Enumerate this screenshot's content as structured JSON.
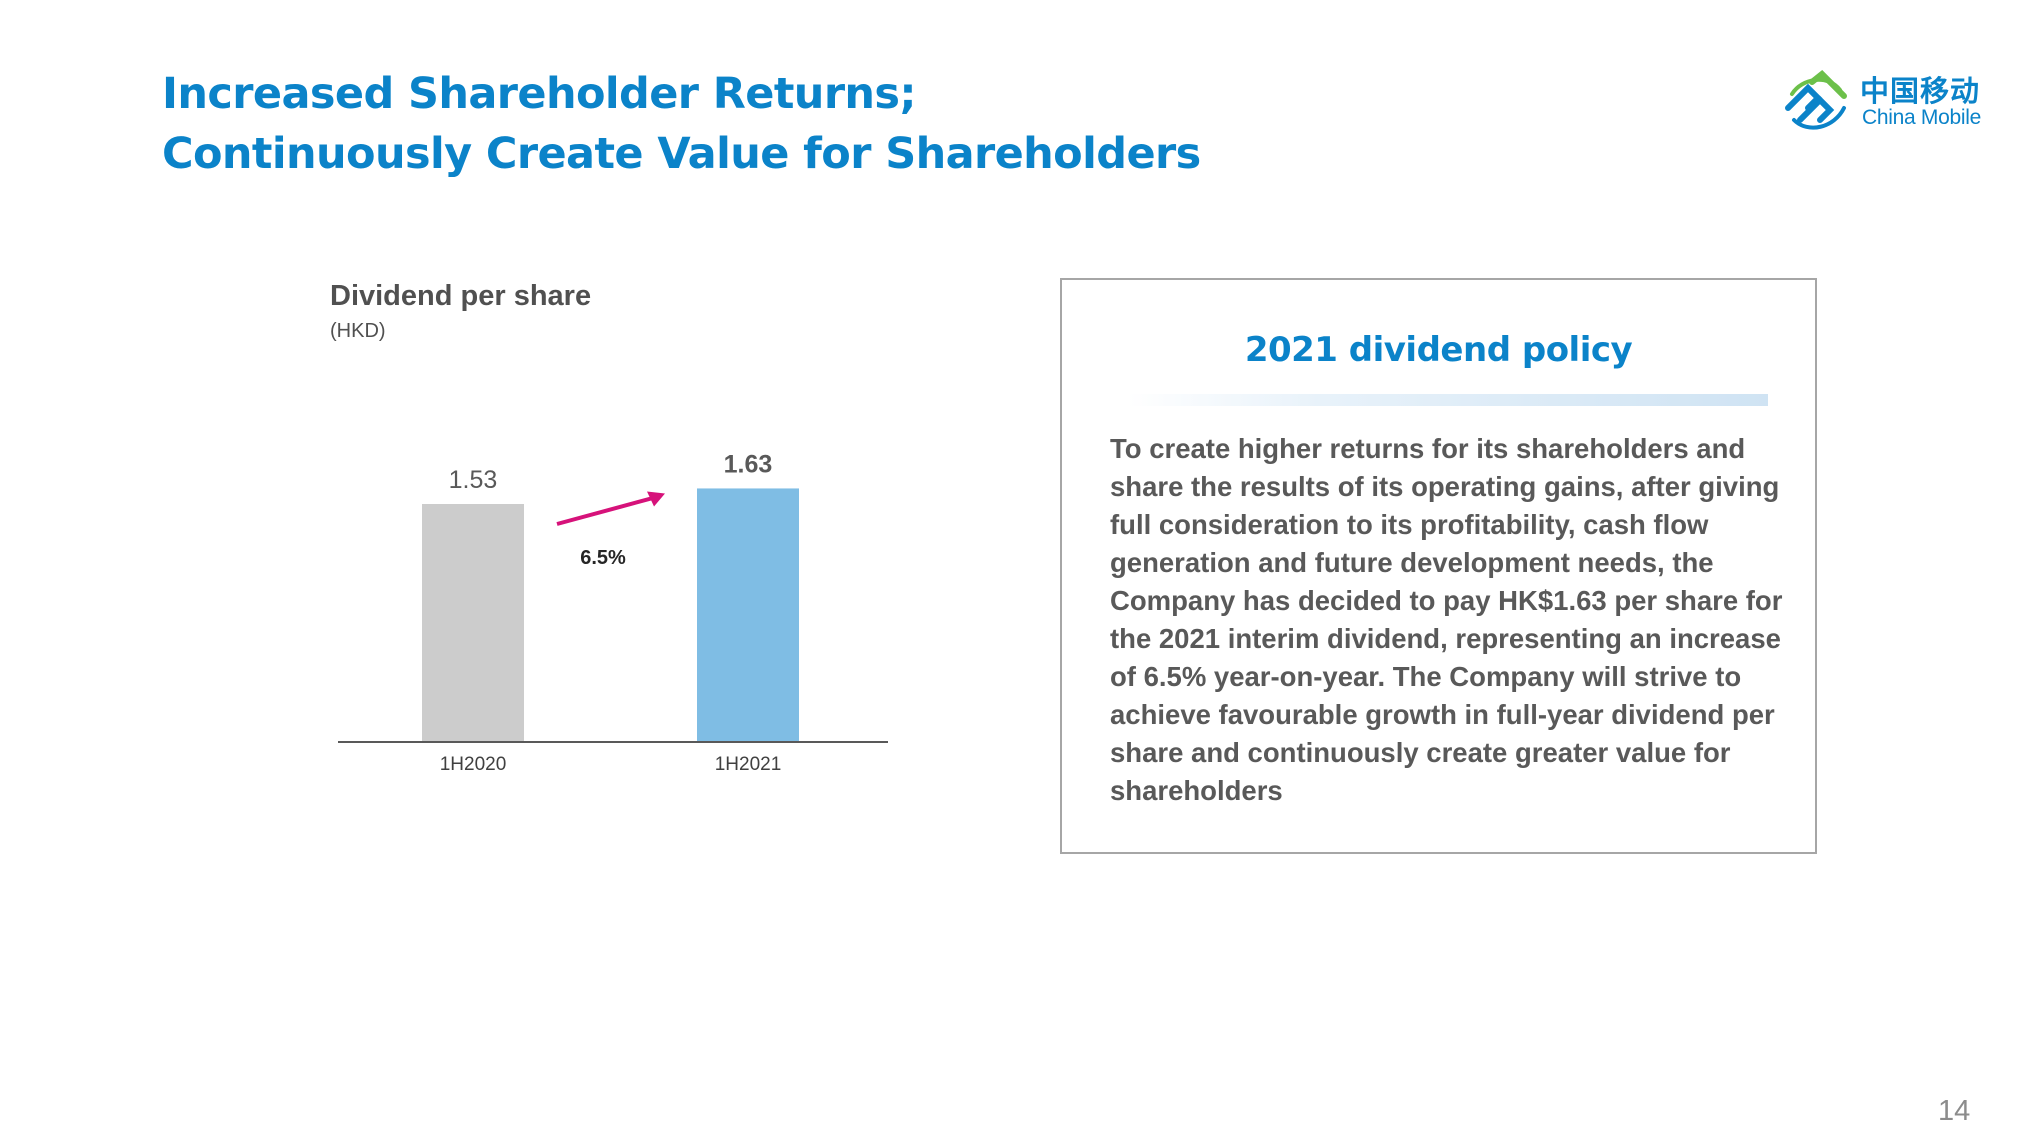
{
  "title_lines": [
    "Increased Shareholder Returns;",
    "Continuously Create Value for Shareholders"
  ],
  "logo": {
    "cn": "中国移动",
    "en": "China Mobile",
    "icon": "china-mobile-swirl-logo",
    "color": "#0b83c9"
  },
  "chart_data": {
    "type": "bar",
    "title": "Dividend per share",
    "unit": "(HKD)",
    "categories": [
      "1H2020",
      "1H2021"
    ],
    "values": [
      1.53,
      1.63
    ],
    "value_labels": [
      "1.53",
      "1.63"
    ],
    "bar_colors": [
      "#cccccc",
      "#7fbde4"
    ],
    "growth_label": "6.5%",
    "arrow_color": "#d6127a",
    "ylim": [
      0,
      1.8
    ]
  },
  "policy": {
    "title": "2021 dividend policy",
    "text": "To create higher returns for its shareholders and share the results of its operating gains, after giving full consideration to its profitability, cash flow generation and future development needs, the Company has decided to pay HK$1.63 per share for the 2021 interim dividend, representing an increase of 6.5% year-on-year.  The Company will strive to achieve favourable growth in full-year dividend per share and continuously create greater value for shareholders"
  },
  "page_number": "14"
}
